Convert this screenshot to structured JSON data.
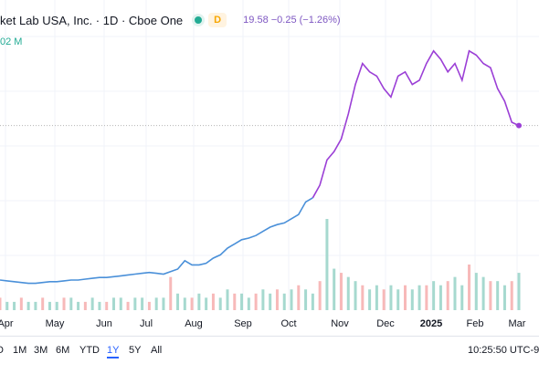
{
  "header": {
    "symbol_text": "ket Lab USA, Inc. · 1D · Cboe One",
    "status_dot_color": "#22ab94",
    "delay_badge": "D",
    "quote_text": "19.58 −0.25 (−1.26%)",
    "volume_text": "02 M"
  },
  "timeframes": [
    {
      "label": "D",
      "active": false
    },
    {
      "label": "1M",
      "active": false
    },
    {
      "label": "3M",
      "active": false
    },
    {
      "label": "6M",
      "active": false
    },
    {
      "label": "YTD",
      "active": false
    },
    {
      "label": "1Y",
      "active": true
    },
    {
      "label": "5Y",
      "active": false
    },
    {
      "label": "All",
      "active": false
    }
  ],
  "clock_text": "10:25:50 UTC-9",
  "colors": {
    "line_blue": "#4a90d9",
    "line_purple": "#9b3fd6",
    "vol_green": "#a6d9cf",
    "vol_red": "#f7b9b9"
  },
  "chart_data": {
    "type": "line",
    "x_labels": [
      "Apr",
      "May",
      "Jun",
      "Jul",
      "Aug",
      "Sep",
      "Oct",
      "Nov",
      "Dec",
      "2025",
      "Feb",
      "Mar"
    ],
    "series": [
      {
        "values": [
          1.2,
          1.1,
          1.0,
          0.9,
          0.8,
          0.8,
          0.9,
          1.0,
          1.0,
          1.1,
          1.2,
          1.2,
          1.3,
          1.4,
          1.5,
          1.5,
          1.6,
          1.7,
          1.8,
          1.9,
          2.0,
          2.1,
          2.0,
          1.9,
          2.2,
          2.5,
          3.5,
          3.0,
          3.0,
          3.2,
          3.8,
          4.2,
          5.0,
          5.5,
          6.0,
          6.2,
          6.5,
          7.0,
          7.5,
          7.8,
          8.0,
          8.5,
          9.0,
          10.5,
          11.0,
          12.5,
          15.5,
          16.5,
          18.0,
          21.0,
          24.5,
          27.0,
          26.0,
          25.5,
          24.0,
          23.0,
          25.5,
          26.0,
          24.5,
          25.0,
          27.0,
          28.5,
          27.5,
          26.0,
          27.0,
          25.0,
          28.5,
          28.0,
          27.0,
          26.5,
          24.0,
          22.5,
          20.0,
          19.6
        ]
      }
    ],
    "volume": [
      3,
      2,
      2,
      3,
      2,
      2,
      3,
      2,
      2,
      3,
      3,
      2,
      2,
      3,
      2,
      2,
      3,
      3,
      2,
      3,
      3,
      2,
      3,
      3,
      8,
      4,
      3,
      3,
      4,
      3,
      4,
      3,
      5,
      4,
      4,
      3,
      4,
      5,
      4,
      5,
      4,
      5,
      6,
      5,
      4,
      7,
      22,
      10,
      9,
      8,
      7,
      6,
      5,
      6,
      5,
      6,
      5,
      6,
      5,
      6,
      6,
      7,
      6,
      7,
      8,
      6,
      11,
      9,
      8,
      7,
      7,
      6,
      7,
      9
    ],
    "volume_up_count_hint": "green and red alternating",
    "grid": true
  }
}
